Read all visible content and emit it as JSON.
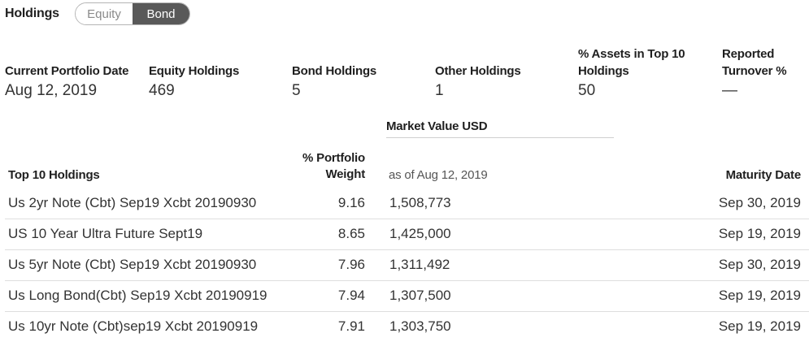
{
  "header": {
    "title": "Holdings",
    "toggle": {
      "options": [
        "Equity",
        "Bond"
      ],
      "selected": "Bond"
    }
  },
  "summary": [
    {
      "label": "Current Portfolio Date",
      "value": "Aug 12, 2019"
    },
    {
      "label": "Equity Holdings",
      "value": "469"
    },
    {
      "label": "Bond Holdings",
      "value": "5"
    },
    {
      "label": "Other Holdings",
      "value": "1"
    },
    {
      "label": "% Assets in Top 10 Holdings",
      "value": "50"
    },
    {
      "label": "Reported Turnover %",
      "value": "—"
    }
  ],
  "table": {
    "group_header": "Market Value USD",
    "columns": {
      "name": "Top 10 Holdings",
      "weight": "% Portfolio Weight",
      "market_value_asof": "as of Aug 12, 2019",
      "maturity": "Maturity Date"
    },
    "rows": [
      {
        "name": "Us 2yr Note (Cbt) Sep19 Xcbt 20190930",
        "weight": "9.16",
        "market_value": "1,508,773",
        "maturity": "Sep 30, 2019"
      },
      {
        "name": "US 10 Year Ultra Future Sept19",
        "weight": "8.65",
        "market_value": "1,425,000",
        "maturity": "Sep 19, 2019"
      },
      {
        "name": "Us 5yr Note (Cbt) Sep19 Xcbt 20190930",
        "weight": "7.96",
        "market_value": "1,311,492",
        "maturity": "Sep 30, 2019"
      },
      {
        "name": "Us Long Bond(Cbt) Sep19 Xcbt 20190919",
        "weight": "7.94",
        "market_value": "1,307,500",
        "maturity": "Sep 19, 2019"
      },
      {
        "name": "Us 10yr Note (Cbt)sep19 Xcbt 20190919",
        "weight": "7.91",
        "market_value": "1,303,750",
        "maturity": "Sep 19, 2019"
      }
    ]
  }
}
